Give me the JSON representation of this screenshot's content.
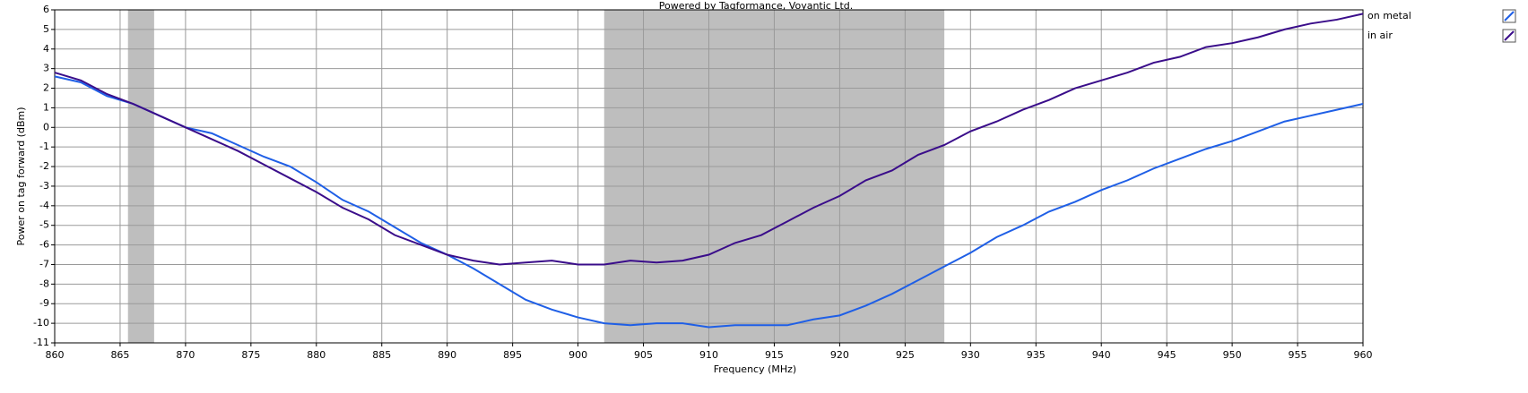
{
  "chart_data": {
    "type": "line",
    "title": "Powered by Tagformance, Voyantic Ltd.",
    "xlabel": "Frequency (MHz)",
    "ylabel": "Power on tag forward (dBm)",
    "x": [
      860,
      862,
      864,
      866,
      868,
      870,
      872,
      874,
      876,
      878,
      880,
      882,
      884,
      886,
      888,
      890,
      892,
      894,
      896,
      898,
      900,
      902,
      904,
      906,
      908,
      910,
      912,
      914,
      916,
      918,
      920,
      922,
      924,
      926,
      928,
      930,
      932,
      934,
      936,
      938,
      940,
      942,
      944,
      946,
      948,
      950,
      952,
      954,
      956,
      958,
      960
    ],
    "series": [
      {
        "name": "on metal",
        "color": "#1f5fe6",
        "values": [
          2.6,
          2.3,
          1.6,
          1.2,
          0.6,
          0.0,
          -0.3,
          -0.9,
          -1.5,
          -2.0,
          -2.8,
          -3.7,
          -4.3,
          -5.1,
          -5.9,
          -6.5,
          -7.2,
          -8.0,
          -8.8,
          -9.3,
          -9.7,
          -10.0,
          -10.1,
          -10.0,
          -10.0,
          -10.2,
          -10.1,
          -10.1,
          -10.1,
          -9.8,
          -9.6,
          -9.1,
          -8.5,
          -7.8,
          -7.1,
          -6.4,
          -5.6,
          -5.0,
          -4.3,
          -3.8,
          -3.2,
          -2.7,
          -2.1,
          -1.6,
          -1.1,
          -0.7,
          -0.2,
          0.3,
          0.6,
          0.9,
          1.2
        ]
      },
      {
        "name": "in air",
        "color": "#3a0d8a",
        "values": [
          2.8,
          2.4,
          1.7,
          1.2,
          0.6,
          0.0,
          -0.6,
          -1.2,
          -1.9,
          -2.6,
          -3.3,
          -4.1,
          -4.7,
          -5.5,
          -6.0,
          -6.5,
          -6.8,
          -7.0,
          -6.9,
          -6.8,
          -7.0,
          -7.0,
          -6.8,
          -6.9,
          -6.8,
          -6.5,
          -5.9,
          -5.5,
          -4.8,
          -4.1,
          -3.5,
          -2.7,
          -2.2,
          -1.4,
          -0.9,
          -0.2,
          0.3,
          0.9,
          1.4,
          2.0,
          2.4,
          2.8,
          3.3,
          3.6,
          4.1,
          4.3,
          4.6,
          5.0,
          5.3,
          5.5,
          5.8
        ]
      }
    ],
    "bands": [
      {
        "from": 865.6,
        "to": 867.6
      },
      {
        "from": 902,
        "to": 928
      }
    ],
    "band_color": "#bebebe",
    "xlim": [
      860,
      960
    ],
    "xticks": [
      860,
      865,
      870,
      875,
      880,
      885,
      890,
      895,
      900,
      905,
      910,
      915,
      920,
      925,
      930,
      935,
      940,
      945,
      950,
      955,
      960
    ],
    "ylim": [
      -11,
      6
    ],
    "yticks": [
      -11,
      -10,
      -9,
      -8,
      -7,
      -6,
      -5,
      -4,
      -3,
      -2,
      -1,
      0,
      1,
      2,
      3,
      4,
      5,
      6
    ],
    "grid": true
  }
}
